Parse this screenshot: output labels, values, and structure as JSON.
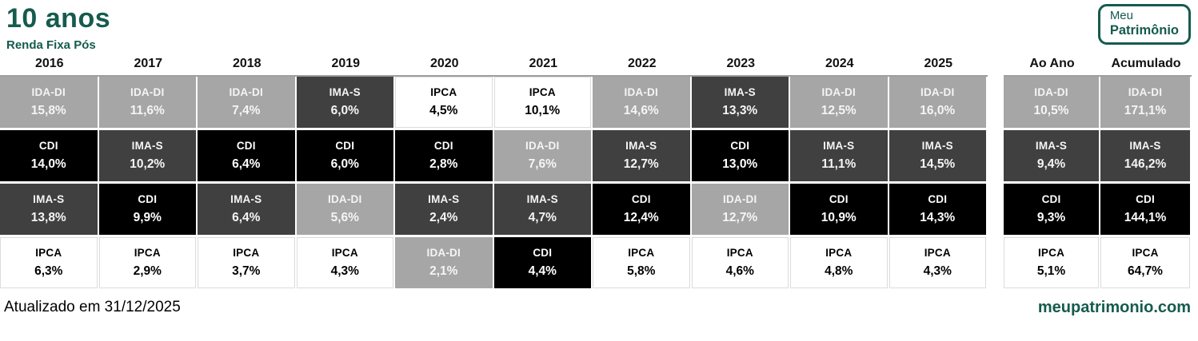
{
  "colors": {
    "brand_green": "#155b4e",
    "header_rule": "#9e9e9e"
  },
  "header": {
    "title": "10 anos",
    "subtitle": "Renda Fixa Pós",
    "logo_line1": "Meu",
    "logo_line2": "Patrimônio"
  },
  "footer": {
    "updated": "Atualizado em 31/12/2025",
    "site": "meupatrimonio.com"
  },
  "chart_data": {
    "type": "table",
    "title": "10 anos",
    "subtitle": "Renda Fixa Pós",
    "columns": [
      "2016",
      "2017",
      "2018",
      "2019",
      "2020",
      "2021",
      "2022",
      "2023",
      "2024",
      "2025",
      "Ao Ano",
      "Acumulado"
    ],
    "index_styles": {
      "IDA-DI": {
        "bg": "#a6a6a6",
        "fg": "#f5f5f5"
      },
      "IMA-S": {
        "bg": "#404040",
        "fg": "#f5f5f5"
      },
      "CDI": {
        "bg": "#000000",
        "fg": "#ffffff"
      },
      "IPCA": {
        "bg": "#ffffff",
        "fg": "#000000"
      }
    },
    "rows": [
      {
        "rank": 1,
        "cells": [
          {
            "index": "IDA-DI",
            "value": "15,8%"
          },
          {
            "index": "IDA-DI",
            "value": "11,6%"
          },
          {
            "index": "IDA-DI",
            "value": "7,4%"
          },
          {
            "index": "IMA-S",
            "value": "6,0%"
          },
          {
            "index": "IPCA",
            "value": "4,5%"
          },
          {
            "index": "IPCA",
            "value": "10,1%"
          },
          {
            "index": "IDA-DI",
            "value": "14,6%"
          },
          {
            "index": "IMA-S",
            "value": "13,3%"
          },
          {
            "index": "IDA-DI",
            "value": "12,5%"
          },
          {
            "index": "IDA-DI",
            "value": "16,0%"
          },
          {
            "index": "IDA-DI",
            "value": "10,5%"
          },
          {
            "index": "IDA-DI",
            "value": "171,1%"
          }
        ]
      },
      {
        "rank": 2,
        "cells": [
          {
            "index": "CDI",
            "value": "14,0%"
          },
          {
            "index": "IMA-S",
            "value": "10,2%"
          },
          {
            "index": "CDI",
            "value": "6,4%"
          },
          {
            "index": "CDI",
            "value": "6,0%"
          },
          {
            "index": "CDI",
            "value": "2,8%"
          },
          {
            "index": "IDA-DI",
            "value": "7,6%"
          },
          {
            "index": "IMA-S",
            "value": "12,7%"
          },
          {
            "index": "CDI",
            "value": "13,0%"
          },
          {
            "index": "IMA-S",
            "value": "11,1%"
          },
          {
            "index": "IMA-S",
            "value": "14,5%"
          },
          {
            "index": "IMA-S",
            "value": "9,4%"
          },
          {
            "index": "IMA-S",
            "value": "146,2%"
          }
        ]
      },
      {
        "rank": 3,
        "cells": [
          {
            "index": "IMA-S",
            "value": "13,8%"
          },
          {
            "index": "CDI",
            "value": "9,9%"
          },
          {
            "index": "IMA-S",
            "value": "6,4%"
          },
          {
            "index": "IDA-DI",
            "value": "5,6%"
          },
          {
            "index": "IMA-S",
            "value": "2,4%"
          },
          {
            "index": "IMA-S",
            "value": "4,7%"
          },
          {
            "index": "CDI",
            "value": "12,4%"
          },
          {
            "index": "IDA-DI",
            "value": "12,7%"
          },
          {
            "index": "CDI",
            "value": "10,9%"
          },
          {
            "index": "CDI",
            "value": "14,3%"
          },
          {
            "index": "CDI",
            "value": "9,3%"
          },
          {
            "index": "CDI",
            "value": "144,1%"
          }
        ]
      },
      {
        "rank": 4,
        "cells": [
          {
            "index": "IPCA",
            "value": "6,3%"
          },
          {
            "index": "IPCA",
            "value": "2,9%"
          },
          {
            "index": "IPCA",
            "value": "3,7%"
          },
          {
            "index": "IPCA",
            "value": "4,3%"
          },
          {
            "index": "IDA-DI",
            "value": "2,1%"
          },
          {
            "index": "CDI",
            "value": "4,4%"
          },
          {
            "index": "IPCA",
            "value": "5,8%"
          },
          {
            "index": "IPCA",
            "value": "4,6%"
          },
          {
            "index": "IPCA",
            "value": "4,8%"
          },
          {
            "index": "IPCA",
            "value": "4,3%"
          },
          {
            "index": "IPCA",
            "value": "5,1%"
          },
          {
            "index": "IPCA",
            "value": "64,7%"
          }
        ]
      }
    ]
  }
}
